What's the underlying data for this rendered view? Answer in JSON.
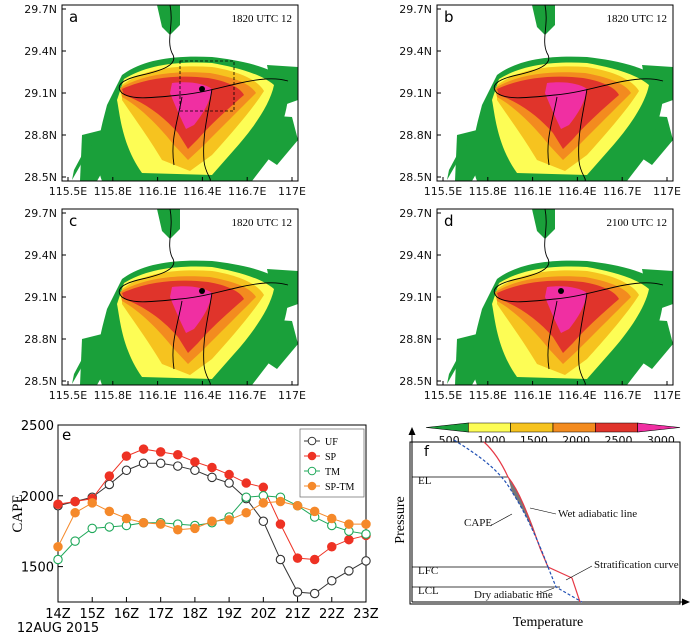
{
  "maps": [
    {
      "letter": "a",
      "time": "1820 UTC 12",
      "dot": true,
      "box": true
    },
    {
      "letter": "b",
      "time": "1820 UTC 12",
      "dot": false,
      "box": false
    },
    {
      "letter": "c",
      "time": "1820 UTC 12",
      "dot": true,
      "box": false
    },
    {
      "letter": "d",
      "time": "2100 UTC 12",
      "dot": true,
      "box": false
    }
  ],
  "map_lat_ticks": [
    "29.7N",
    "29.4N",
    "29.1N",
    "28.8N",
    "28.5N"
  ],
  "map_lon_ticks": [
    "115.5E",
    "115.8E",
    "116.1E",
    "116.4E",
    "116.7E",
    "117E"
  ],
  "colorbar": {
    "ticks": [
      "500",
      "1000",
      "1500",
      "2000",
      "2500",
      "3000"
    ],
    "colors": [
      "#1aa03a",
      "#fdfd55",
      "#f6c31f",
      "#f38b1f",
      "#e0342b",
      "#f02fa2"
    ]
  },
  "panel_e_letter": "e",
  "panel_f_letter": "f",
  "chart_data": {
    "type": "line",
    "ylabel": "CAPE",
    "xlabel": "",
    "date_label": "12AUG 2015",
    "x_ticks": [
      "14Z",
      "15Z",
      "16Z",
      "17Z",
      "18Z",
      "19Z",
      "20Z",
      "21Z",
      "22Z",
      "23Z"
    ],
    "xlim": [
      14,
      23
    ],
    "ylim": [
      1250,
      2500
    ],
    "y_ticks": [
      1500,
      2000,
      2500
    ],
    "legend_position": "top-right",
    "series": [
      {
        "name": "UF",
        "color": "#333333",
        "marker": "open",
        "x": [
          14,
          14.5,
          15,
          15.5,
          16,
          16.5,
          17,
          17.5,
          18,
          18.5,
          19,
          19.5,
          20,
          20.5,
          21,
          21.5,
          22,
          22.5,
          23
        ],
        "values": [
          1930,
          1960,
          1990,
          2080,
          2180,
          2230,
          2230,
          2210,
          2180,
          2130,
          2090,
          1980,
          1820,
          1550,
          1320,
          1310,
          1400,
          1470,
          1540
        ]
      },
      {
        "name": "SP",
        "color": "#ee3224",
        "marker": "filled",
        "x": [
          14,
          14.5,
          15,
          15.5,
          16,
          16.5,
          17,
          17.5,
          18,
          18.5,
          19,
          19.5,
          20,
          20.5,
          21,
          21.5,
          22,
          22.5,
          23
        ],
        "values": [
          1940,
          1960,
          1980,
          2140,
          2280,
          2330,
          2310,
          2290,
          2240,
          2200,
          2150,
          2090,
          2060,
          1800,
          1560,
          1550,
          1640,
          1690,
          1720
        ]
      },
      {
        "name": "TM",
        "color": "#1fa85a",
        "marker": "open",
        "x": [
          14,
          14.5,
          15,
          15.5,
          16,
          16.5,
          17,
          17.5,
          18,
          18.5,
          19,
          19.5,
          20,
          20.5,
          21,
          21.5,
          22,
          22.5,
          23
        ],
        "values": [
          1550,
          1680,
          1770,
          1780,
          1790,
          1810,
          1810,
          1800,
          1790,
          1810,
          1850,
          1990,
          2000,
          1990,
          1930,
          1850,
          1790,
          1750,
          1730
        ]
      },
      {
        "name": "SP-TM",
        "color": "#f5892a",
        "marker": "filled",
        "x": [
          14,
          14.5,
          15,
          15.5,
          16,
          16.5,
          17,
          17.5,
          18,
          18.5,
          19,
          19.5,
          20,
          20.5,
          21,
          21.5,
          22,
          22.5,
          23
        ],
        "values": [
          1640,
          1880,
          1950,
          1890,
          1840,
          1810,
          1800,
          1760,
          1770,
          1820,
          1830,
          1880,
          1950,
          1960,
          1930,
          1890,
          1840,
          1800,
          1800
        ]
      }
    ]
  },
  "diagram": {
    "ylabel": "Pressure",
    "xlabel": "Temperature",
    "levels": [
      "EL",
      "LFC",
      "LCL"
    ],
    "annotations": {
      "cape": "CAPE",
      "wet": "Wet adiabatic line",
      "strat": "Stratification curve",
      "dry": "Dry adiabatic line"
    }
  }
}
